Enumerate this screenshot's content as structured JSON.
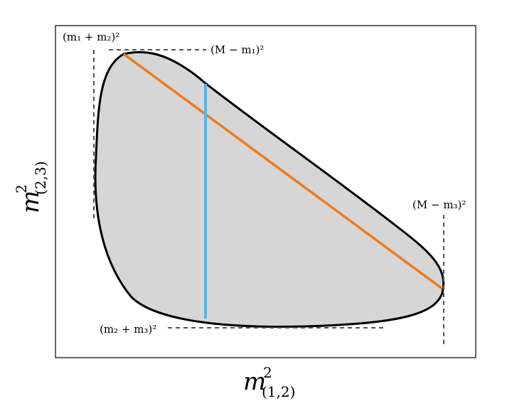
{
  "diagram": {
    "labels": {
      "top_left": "(m₁ + m₂)²",
      "top_right": "(M − m₁)²",
      "right": "(M − m₃)²",
      "bottom": "(m₂ + m₃)²"
    },
    "axes": {
      "x_main": "m",
      "x_sup": "2",
      "x_sub": "(1,2)",
      "y_main": "m",
      "y_sup": "2",
      "y_sub": "(2,3)"
    },
    "colors": {
      "region_fill": "#d6d6d6",
      "boundary": "#000000",
      "orange_line": "#f07a1a",
      "blue_line": "#5ab4ec",
      "dashed": "#555555"
    }
  }
}
